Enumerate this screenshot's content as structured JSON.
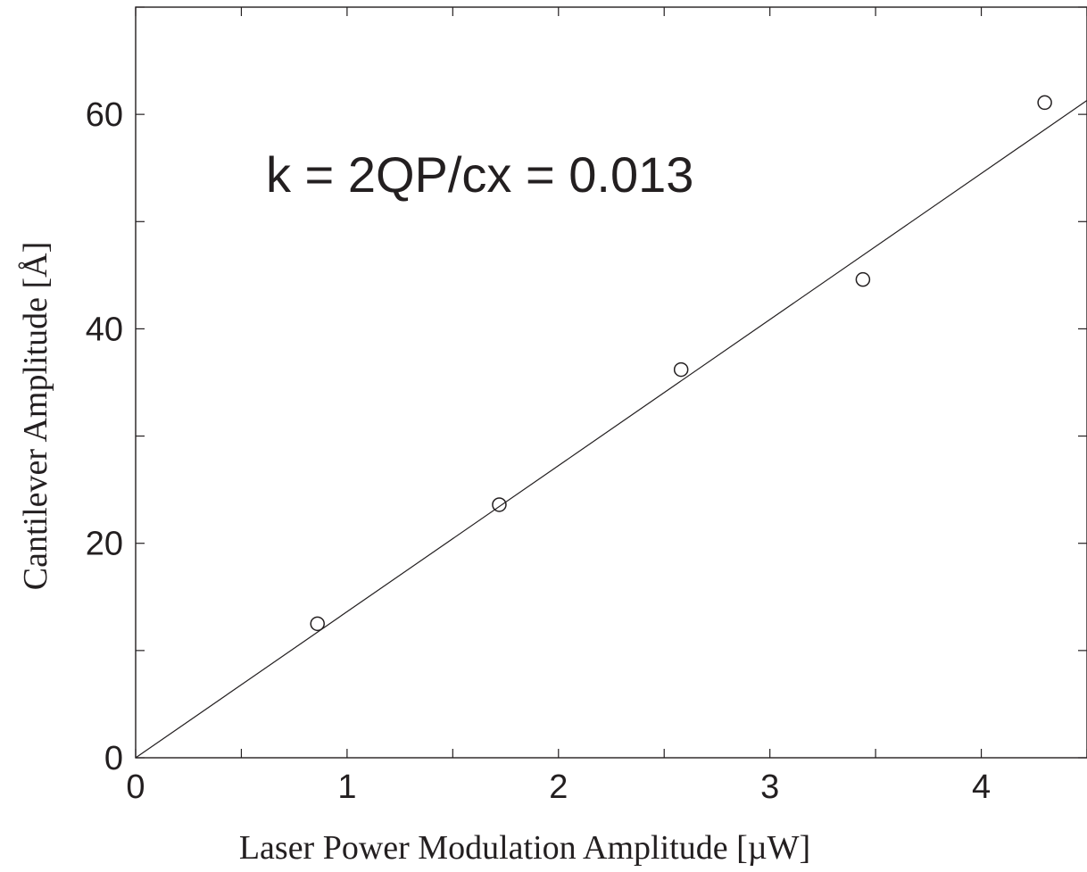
{
  "chart_data": {
    "type": "scatter",
    "title": "",
    "xlabel": "Laser Power Modulation Amplitude [µW]",
    "ylabel": "Cantilever Amplitude [Å]",
    "xlim": [
      0,
      4.5
    ],
    "ylim": [
      0,
      70
    ],
    "xticks": [
      0,
      0.5,
      1,
      1.5,
      2,
      2.5,
      3,
      3.5,
      4,
      4.5
    ],
    "yticks": [
      0,
      10,
      20,
      30,
      40,
      50,
      60,
      70
    ],
    "xtick_labels": [
      {
        "value": 0,
        "label": "0"
      },
      {
        "value": 1,
        "label": "1"
      },
      {
        "value": 2,
        "label": "2"
      },
      {
        "value": 3,
        "label": "3"
      },
      {
        "value": 4,
        "label": "4"
      }
    ],
    "ytick_labels": [
      {
        "value": 0,
        "label": "0"
      },
      {
        "value": 20,
        "label": "20"
      },
      {
        "value": 40,
        "label": "40"
      },
      {
        "value": 60,
        "label": "60"
      }
    ],
    "grid": false,
    "series": [
      {
        "marker": "open-circle",
        "x": [
          0.86,
          1.72,
          2.58,
          3.44,
          4.3
        ],
        "y": [
          12.5,
          23.6,
          36.2,
          44.6,
          61.1
        ]
      }
    ],
    "fit_line": {
      "x": [
        0,
        4.5
      ],
      "y": [
        0,
        61.3
      ]
    },
    "annotation": "k = 2QP/cx = 0.013",
    "colors": {
      "axis": "#231f20",
      "line": "#231f20",
      "marker": "#231f20",
      "background": "#ffffff"
    }
  }
}
